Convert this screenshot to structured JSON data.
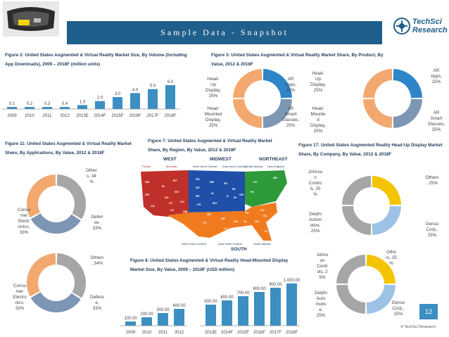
{
  "header": {
    "title": "Sample Data - Snapshot",
    "logo_line1": "TechSci",
    "logo_line2": "Research"
  },
  "footer": {
    "page_number": "12",
    "copyright": "© TechSci Research"
  },
  "colors": {
    "banner": "#1f5f8b",
    "bar": "#3b8fc2",
    "orange": "#f2a86e",
    "blue": "#2e86c8",
    "gray": "#a6a6a6",
    "slate": "#7d96b3",
    "yellow": "#f5c400",
    "lightblue": "#9cc3e6"
  },
  "figures": {
    "fig2_title": "Figure 2: United States Augmented & Virtual Reality Market Size, By Volume (Including App Downloads), 2009 – 2018F (million units)",
    "fig3_title": "Figure 3: United States Augmented & Virtual Reality Market Share, By Product, By Value, 2012 & 2018F",
    "fig11_title": "Figure 11: United States Augmented & Virtual Reality Market Share, By Applications, By Value, 2012 & 2018F",
    "fig7_title": "Figure 7: United States Augmented & Virtual Reality Market Share, By Region, By Value, 2012 & 2018F",
    "fig17_title": "Figure 17: United States Augmented Reality Head-Up Display Market Share, By Company, By Value, 2012 & 2018F",
    "fig8_title": "Figure 8: United States Augmented & Virtual Reality Head-Mounted Display Market Size, By Value, 2009 – 2018F (USD million)"
  },
  "map_labels": {
    "west": "WEST",
    "midwest": "MIDWEST",
    "northeast": "NORTHEAST",
    "south": "SOUTH",
    "pacific": "Pacific",
    "mountain": "Mountain",
    "wnc": "West North Central",
    "enc": "East North Central",
    "mid_atlantic": "Middle Atlantic",
    "new_england": "New England",
    "wsc": "West South Central",
    "esc": "East South Central",
    "south_atlantic": "South Atlantic"
  },
  "chart_data": [
    {
      "type": "bar",
      "title": "Figure 2",
      "categories": [
        "2009",
        "2010",
        "2011",
        "2012",
        "2013E",
        "2014F",
        "2015F",
        "2016F",
        "2017F",
        "2018F"
      ],
      "values": [
        0.1,
        0.2,
        0.3,
        0.4,
        1.0,
        2.0,
        3.0,
        4.0,
        5.0,
        6.0
      ],
      "value_labels": [
        "0.1",
        "0.2",
        "0.3",
        "0.4",
        "1.0",
        "2.0",
        "3.0",
        "4.0",
        "5.0",
        "6.0"
      ]
    },
    {
      "type": "pie",
      "title": "Figure 3 - 2012",
      "labels": [
        "Head-Up Display, 25%",
        "AR Apps, 25%",
        "AR Smart Glasses, 25%",
        "Head-Mounted Display, 25%"
      ],
      "values": [
        25,
        25,
        25,
        25
      ]
    },
    {
      "type": "pie",
      "title": "Figure 3 - 2018F",
      "labels": [
        "Head-Up Display, 25%",
        "AR Apps, 25%",
        "AR Smart Glasses, 25%",
        "Head-Mounted Display, 25%"
      ],
      "values": [
        25,
        25,
        25,
        25
      ]
    },
    {
      "type": "pie",
      "title": "Figure 11 - 2012",
      "labels": [
        "Others, 34%",
        "Defense, 33%",
        "Consumer Electronics, 33%"
      ],
      "values": [
        34,
        33,
        33
      ]
    },
    {
      "type": "pie",
      "title": "Figure 11 - 2018F",
      "labels": [
        "Others, 34%",
        "Defense, 33%",
        "Consumer Electronics, 33%"
      ],
      "values": [
        34,
        33,
        33
      ]
    },
    {
      "type": "pie",
      "title": "Figure 17 - 2012",
      "labels": [
        "Others, 25%",
        "Denso Corp., 25%",
        "Delphi Automotive, 25%",
        "Johnson Controls, 25%"
      ],
      "values": [
        25,
        25,
        25,
        25
      ]
    },
    {
      "type": "pie",
      "title": "Figure 17 - 2018F",
      "labels": [
        "Others, 25%",
        "Denso Corp., 25%",
        "Delphi Automotive, 25%",
        "Johnson Controls, 25%"
      ],
      "values": [
        25,
        25,
        25,
        25
      ]
    },
    {
      "type": "bar",
      "title": "Figure 8",
      "categories": [
        "2009",
        "2010",
        "2011",
        "2012",
        "2013E",
        "2014F",
        "2015F",
        "2016F",
        "2017F",
        "2018F"
      ],
      "values": [
        100,
        200,
        300,
        400,
        500,
        600,
        700,
        800,
        900,
        1000
      ],
      "value_labels": [
        "100.00",
        "200.00",
        "300.00",
        "400.00",
        "500.00",
        "600.00",
        "700.00",
        "800.00",
        "900.00",
        "1,000.00"
      ]
    }
  ],
  "pie_labels": {
    "f3a": [
      "Head-\nUp\nDisplay,\n25%",
      "AR\nApps,\n25%",
      "AR\nSmart\nGlasses,\n25%",
      "Head-\nMounted\nDisplay,\n25%"
    ],
    "f3b": [
      "Head-\nUp\nDisplay,\n25%",
      "AR\nApps,\n25%",
      "AR\nSmart\nGlasses,\n25%",
      "Head-\nMounte\nd\nDisplay,\n25%"
    ],
    "f11a": [
      "Other\ns, 34\n%",
      "Defen\nse,\n33%",
      "Consu\nmer\nElectr\nonics,\n33%"
    ],
    "f11b": [
      "Others\n, 34%",
      "Defens\ne,\n33%",
      "Consu\nmer\nElectro\nnics,\n33%"
    ],
    "f17a": [
      "Others\n, 25%",
      "Denso\nCorp.,\n25%",
      "Delphi\nAutom\notive,\n25%",
      "Johnso\nn\nContro\nls, 25\n%"
    ],
    "f17b": [
      "Othe\nrs, 25\n%",
      "Denso\nCorp.,\n25%",
      "Delphi\nAuto\nmotiv\ne,\n25%",
      "Johns\non\nContr\nols, 2\n5%"
    ]
  }
}
